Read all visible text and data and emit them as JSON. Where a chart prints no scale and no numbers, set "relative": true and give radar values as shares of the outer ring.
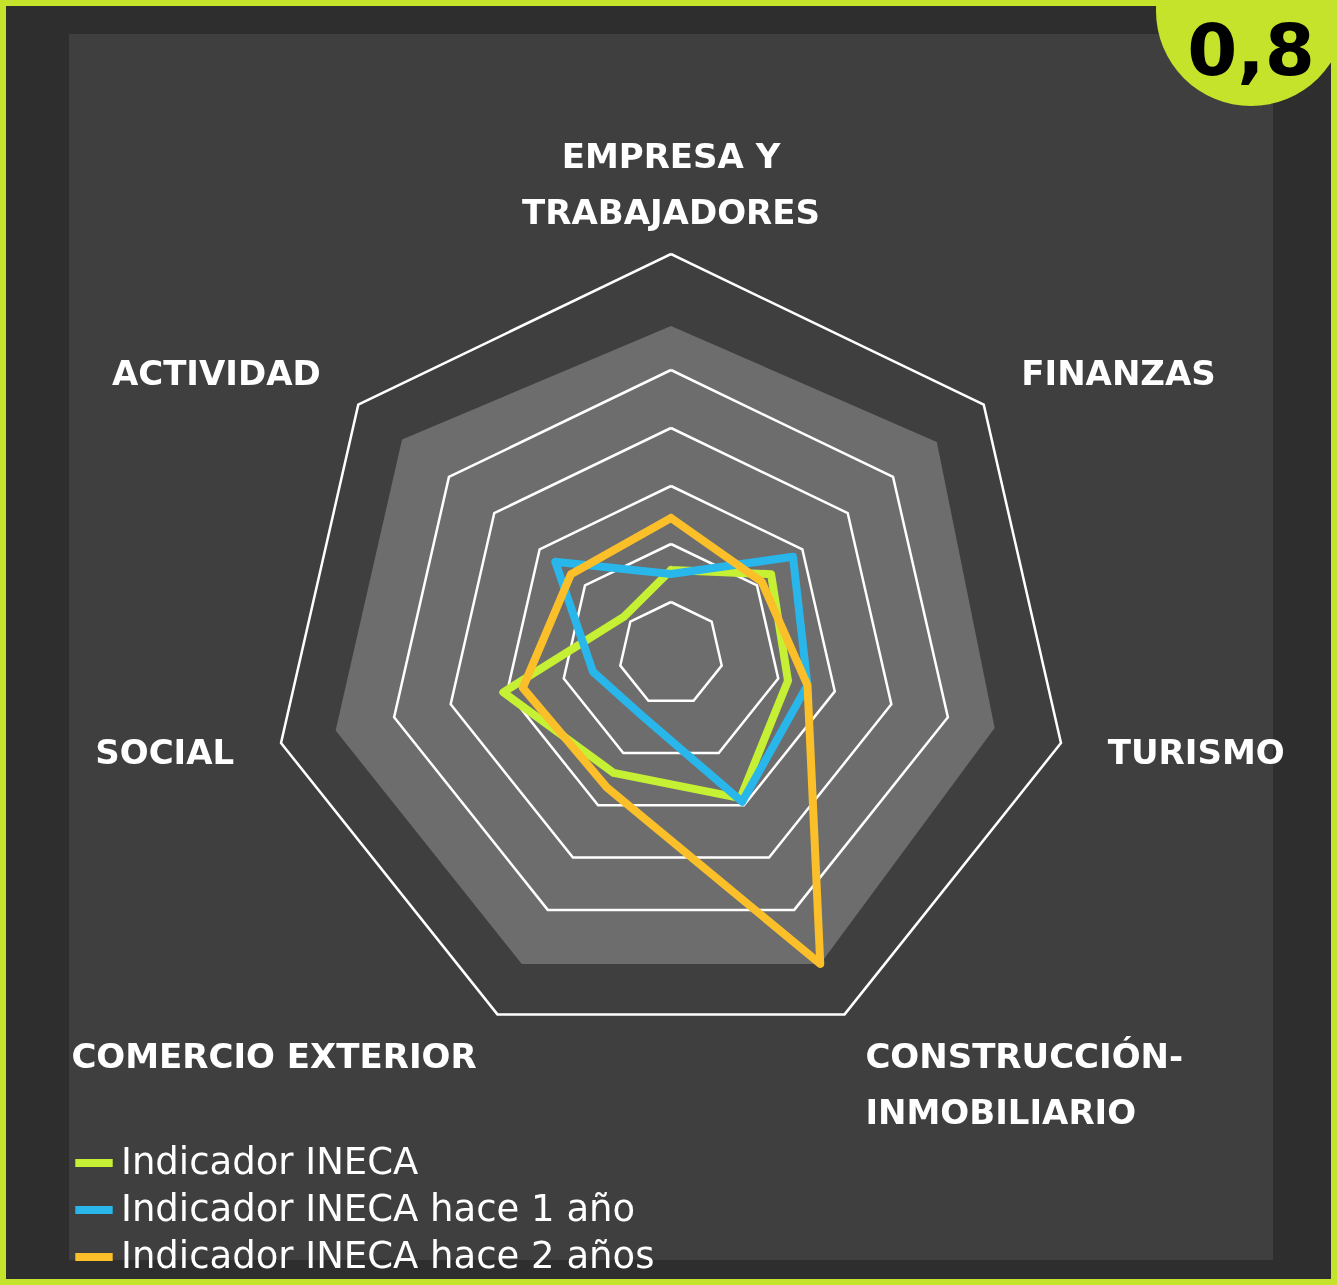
{
  "chart_data": {
    "type": "radar",
    "relative": true,
    "legend": "bottom",
    "categories": [
      "EMPRESA Y\nTRABAJADORES",
      "FINANZAS",
      "TURISMO",
      "CONSTRUCCIÓN-\nINMOBILIARIO",
      "COMERCIO EXTERIOR",
      "SOCIAL",
      "ACTIVIDAD"
    ],
    "series": [
      {
        "type": "area",
        "color": "#6d6d6d",
        "values": [
          0.82,
          0.85,
          0.83,
          0.86,
          0.86,
          0.86,
          0.86
        ]
      },
      {
        "name": "Indicador INECA",
        "color": "#c6f033",
        "values": [
          0.21,
          0.32,
          0.3,
          0.4,
          0.33,
          0.43,
          0.15
        ]
      },
      {
        "name": "Indicador INECA hace 1 año",
        "color": "#29b6ea",
        "values": [
          0.2,
          0.39,
          0.35,
          0.41,
          0.17,
          0.2,
          0.37
        ]
      },
      {
        "name": "Indicador INECA hace 2 años",
        "color": "#fbbf2a",
        "values": [
          0.34,
          0.29,
          0.35,
          0.86,
          0.37,
          0.38,
          0.32
        ]
      }
    ],
    "annotations": [
      "0,8"
    ]
  }
}
